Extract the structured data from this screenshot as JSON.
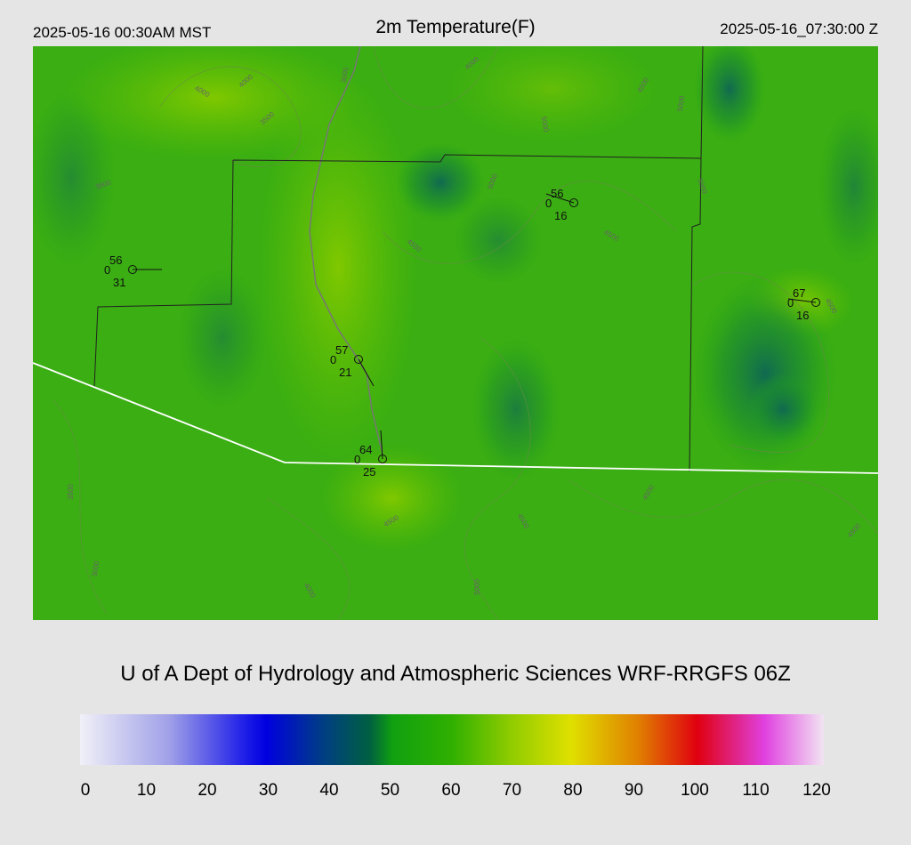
{
  "header": {
    "valid_local": "2025-05-16 00:30AM MST",
    "title": "2m Temperature(F)",
    "valid_utc": "2025-05-16_07:30:00 Z"
  },
  "stations": [
    {
      "temperature": 56,
      "cloud": 0,
      "dewpoint": 31
    },
    {
      "temperature": 56,
      "cloud": 0,
      "dewpoint": 16
    },
    {
      "temperature": 67,
      "cloud": 0,
      "dewpoint": 16
    },
    {
      "temperature": 57,
      "cloud": 0,
      "dewpoint": 21
    },
    {
      "temperature": 64,
      "cloud": 0,
      "dewpoint": 25
    }
  ],
  "contour_labels": [
    "4000",
    "4000",
    "3000",
    "4000",
    "3500",
    "3500",
    "5000",
    "4500",
    "5000",
    "4500",
    "5000",
    "5000",
    "4500",
    "4500",
    "3500",
    "3000",
    "4500",
    "4000",
    "4500",
    "5000",
    "4500",
    "4500"
  ],
  "footer": "U of A Dept of Hydrology and Atmospheric Sciences WRF-RRGFS 06Z",
  "colorbar": {
    "ticks": [
      0,
      10,
      20,
      30,
      40,
      50,
      60,
      70,
      80,
      90,
      100,
      110,
      120
    ]
  }
}
